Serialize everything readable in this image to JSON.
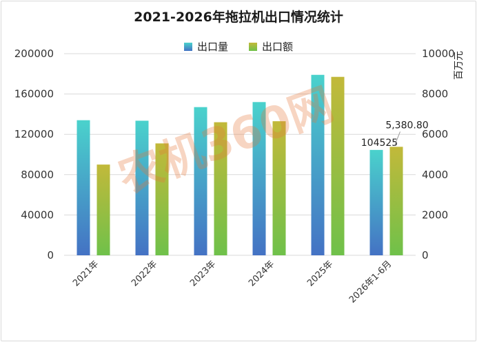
{
  "chart_data": {
    "type": "bar",
    "title": "2021-2026年拖拉机出口情况统计",
    "categories": [
      "2021年",
      "2022年",
      "2023年",
      "2024年",
      "2025年",
      "2026年1-6月"
    ],
    "series": [
      {
        "name": "出口量",
        "axis": "left",
        "values": [
          134000,
          133500,
          147000,
          152000,
          179000,
          104525
        ]
      },
      {
        "name": "出口额",
        "axis": "right",
        "values": [
          4500,
          5550,
          6600,
          6650,
          8850,
          5380.8
        ]
      }
    ],
    "y_left": {
      "range": [
        0,
        200000
      ],
      "ticks": [
        "0",
        "40000",
        "80000",
        "120000",
        "160000",
        "200000"
      ],
      "step": 40000
    },
    "y_right": {
      "range": [
        0,
        10000
      ],
      "label": "百万元",
      "ticks": [
        "0",
        "2000",
        "4000",
        "6000",
        "8000",
        "10000"
      ],
      "step": 2000
    },
    "data_labels": [
      {
        "series": "出口量",
        "index": 5,
        "text": "104525"
      },
      {
        "series": "出口额",
        "index": 5,
        "text": "5,380.80"
      }
    ],
    "legend": "top-center",
    "grid": true,
    "colors": {
      "volume_top": "#4ad2cc",
      "volume_bottom": "#4472c4",
      "value_top": "#c2b93a",
      "value_bottom": "#6fc14a",
      "grid": "#d9d9d9"
    },
    "watermark": "农机360网"
  }
}
